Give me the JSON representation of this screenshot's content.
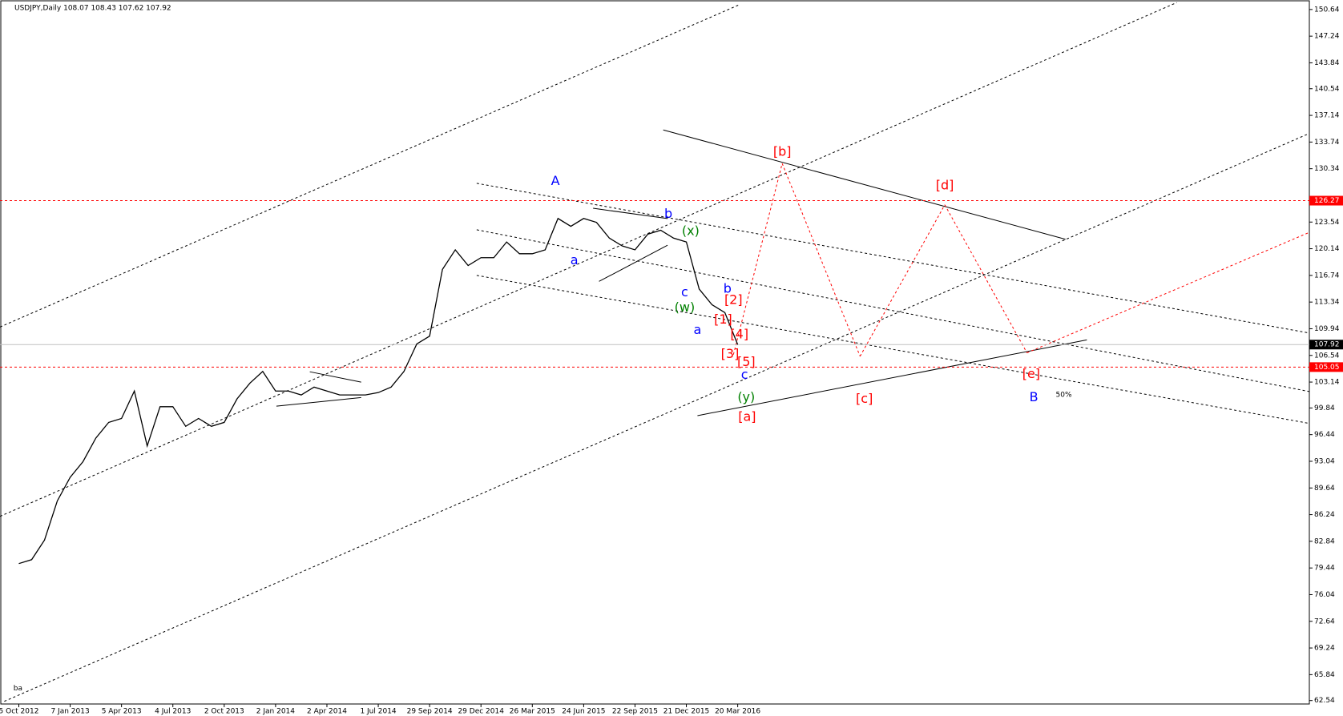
{
  "chart_data": {
    "type": "line",
    "title": "USDJPY,Daily 108.07 108.43 107.62 107.92",
    "categories": [
      "5 Oct 2012",
      null,
      null,
      null,
      "7 Jan 2013",
      null,
      null,
      null,
      "5 Apr 2013",
      null,
      null,
      null,
      "4 Jul 2013",
      null,
      null,
      null,
      "2 Oct 2013",
      null,
      null,
      null,
      "2 Jan 2014",
      null,
      null,
      null,
      "2 Apr 2014",
      null,
      null,
      null,
      "1 Jul 2014",
      null,
      null,
      null,
      "29 Sep 2014",
      null,
      null,
      null,
      "29 Dec 2014",
      null,
      null,
      null,
      "26 Mar 2015",
      null,
      null,
      null,
      "24 Jun 2015",
      null,
      null,
      null,
      "22 Sep 2015",
      null,
      null,
      null,
      "21 Dec 2015",
      null,
      null,
      null,
      "20 Mar 2016"
    ],
    "series": [
      {
        "name": "USDJPY",
        "color": "#000000",
        "values": [
          80,
          80.5,
          83,
          88,
          91,
          93,
          96,
          98,
          98.5,
          102,
          95,
          100,
          100,
          97.5,
          98.5,
          97.5,
          98,
          101,
          103,
          104.5,
          102,
          102,
          101.5,
          102.5,
          102,
          101.5,
          101.5,
          101.5,
          101.8,
          102.5,
          104.5,
          108,
          109,
          117.5,
          120,
          118,
          119,
          119,
          121,
          119.5,
          119.5,
          120,
          124,
          123,
          124,
          123.5,
          121.5,
          120.5,
          120,
          122,
          122.5,
          121.5,
          121,
          115,
          113,
          112,
          107.92
        ]
      }
    ],
    "ylim": [
      62.1,
      151.85
    ],
    "yticks": [
      150.64,
      147.24,
      143.84,
      140.54,
      137.14,
      133.74,
      130.34,
      123.54,
      120.14,
      116.74,
      113.34,
      109.94,
      106.54,
      103.14,
      99.84,
      96.44,
      93.04,
      89.64,
      86.24,
      82.84,
      79.44,
      76.04,
      72.64,
      69.24,
      65.84,
      62.54
    ],
    "hlines": [
      {
        "value": 126.27,
        "color": "#ff0000"
      },
      {
        "value": 105.05,
        "color": "#ff0000"
      },
      {
        "value": 107.92,
        "color": "#000000"
      }
    ],
    "annotations": [
      {
        "text": "A",
        "color": "#0000ff"
      },
      {
        "text": "a",
        "color": "#0000ff"
      },
      {
        "text": "b",
        "color": "#0000ff"
      },
      {
        "text": "(x)",
        "color": "#008000"
      },
      {
        "text": "c",
        "color": "#0000ff"
      },
      {
        "text": "(w)",
        "color": "#008000"
      },
      {
        "text": "a",
        "color": "#0000ff"
      },
      {
        "text": "b",
        "color": "#0000ff"
      },
      {
        "text": "[2]",
        "color": "#ff0000"
      },
      {
        "text": "[1]",
        "color": "#ff0000"
      },
      {
        "text": "[4]",
        "color": "#ff0000"
      },
      {
        "text": "[3]",
        "color": "#ff0000"
      },
      {
        "text": "[5]",
        "color": "#ff0000"
      },
      {
        "text": "c",
        "color": "#0000ff"
      },
      {
        "text": "(y)",
        "color": "#008000"
      },
      {
        "text": "[a]",
        "color": "#ff0000"
      },
      {
        "text": "[b]",
        "color": "#ff0000"
      },
      {
        "text": "[c]",
        "color": "#ff0000"
      },
      {
        "text": "[d]",
        "color": "#ff0000"
      },
      {
        "text": "[e]",
        "color": "#ff0000"
      },
      {
        "text": "B",
        "color": "#0000ff"
      },
      {
        "text": "50%",
        "color": "#000000"
      },
      {
        "text": "ba",
        "color": "#000000"
      }
    ]
  }
}
